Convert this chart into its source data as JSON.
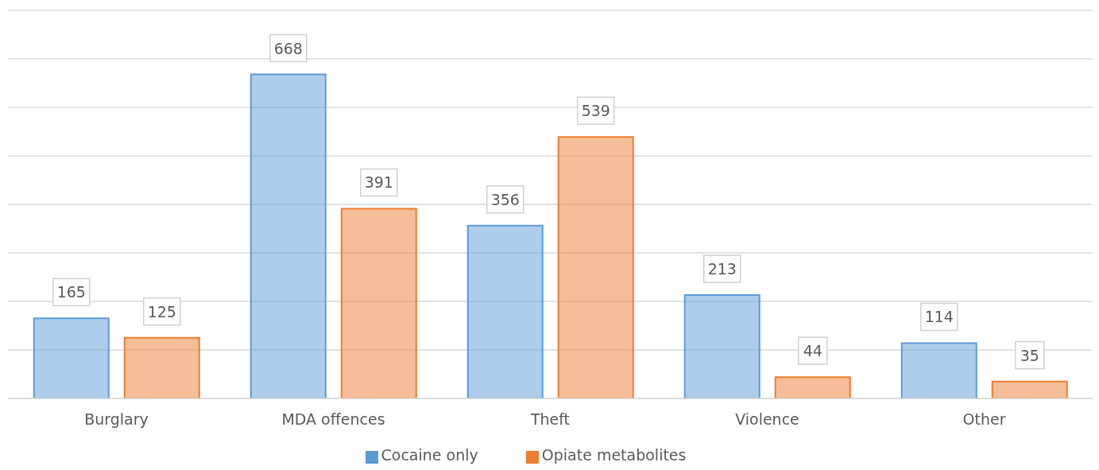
{
  "chart_data": {
    "type": "bar",
    "categories": [
      "Burglary",
      "MDA offences",
      "Theft",
      "Violence",
      "Other"
    ],
    "series": [
      {
        "name": "Cocaine only",
        "color": "#5b9bd5",
        "values": [
          165,
          668,
          356,
          213,
          114
        ]
      },
      {
        "name": "Opiate metabolites",
        "color": "#ed7d31",
        "values": [
          125,
          391,
          539,
          44,
          35
        ]
      }
    ],
    "ylim": [
      0,
      800
    ],
    "yticks": [
      {
        "value": 0,
        "label": null
      },
      {
        "value": 100,
        "label": null
      },
      {
        "value": 200,
        "label": null
      },
      {
        "value": 300,
        "label": null
      },
      {
        "value": 400,
        "label": null
      },
      {
        "value": 500,
        "label": null
      },
      {
        "value": 600,
        "label": null
      },
      {
        "value": 700,
        "label": null
      },
      {
        "value": 800,
        "label": null
      }
    ],
    "tick_labels": "x",
    "grid": "y",
    "legend": "bottom",
    "data_labels": true
  }
}
